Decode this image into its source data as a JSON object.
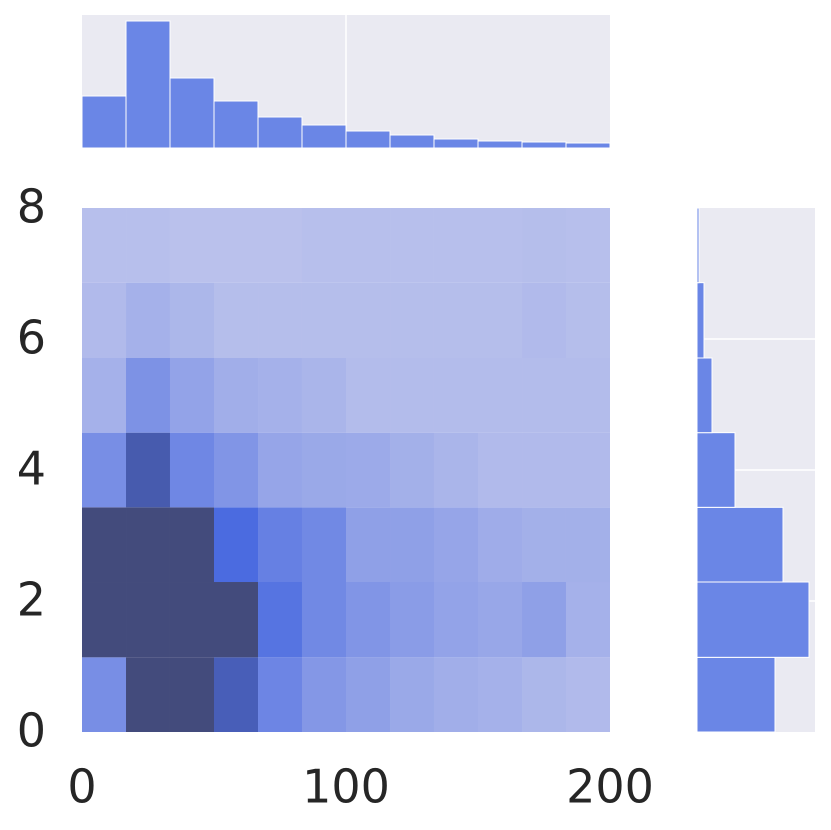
{
  "chart_data": [
    {
      "type": "heatmap2d",
      "x_bins": [
        0,
        16.67,
        33.33,
        50,
        66.67,
        83.33,
        100,
        116.67,
        133.33,
        150,
        166.67,
        183.33,
        200
      ],
      "y_bins": [
        0,
        1.14,
        2.29,
        3.43,
        4.57,
        5.71,
        6.86,
        8
      ],
      "values": [
        [
          3,
          10,
          10,
          7,
          3.5,
          2.5,
          2,
          1.5,
          1.2,
          1,
          0.7,
          0.5
        ],
        [
          10,
          10,
          10,
          10,
          4.5,
          3.3,
          2.6,
          2.2,
          1.8,
          1.6,
          2,
          1
        ],
        [
          10,
          10,
          10,
          5,
          3.8,
          3.3,
          2,
          2,
          1.7,
          1.3,
          1.1,
          1.1
        ],
        [
          3,
          7.5,
          3.4,
          2.6,
          1.7,
          1.5,
          1.4,
          1.1,
          0.8,
          0.5,
          0.5,
          0.5
        ],
        [
          1,
          2.8,
          1.8,
          1.2,
          1,
          0.8,
          0.4,
          0.4,
          0.4,
          0.4,
          0.4,
          0.4
        ],
        [
          0.5,
          1,
          0.7,
          0.3,
          0.3,
          0.3,
          0.3,
          0.3,
          0.3,
          0.3,
          0.5,
          0.3
        ],
        [
          0.2,
          0.2,
          0.1,
          0.1,
          0.1,
          0.2,
          0.2,
          0.2,
          0.2,
          0.2,
          0.3,
          0.2
        ]
      ],
      "colormap": [
        "#bcc3ec",
        "#4b6be0",
        "#434b7c"
      ],
      "xlim": [
        0,
        200
      ],
      "ylim": [
        0,
        8
      ],
      "xticks": [
        0,
        100,
        200
      ],
      "yticks": [
        0,
        2,
        4,
        6,
        8
      ]
    },
    {
      "type": "histogram",
      "orientation": "vertical",
      "color": "#6a86e6",
      "bins": [
        0,
        16.67,
        33.33,
        50,
        66.67,
        83.33,
        100,
        116.67,
        133.33,
        150,
        166.67,
        183.33,
        200
      ],
      "values": [
        52,
        127,
        70,
        47,
        31,
        23,
        17,
        13,
        9,
        7,
        6,
        5
      ],
      "xlim": [
        0,
        200
      ],
      "ylim": [
        0,
        133
      ],
      "grid_lines": [
        100
      ]
    },
    {
      "type": "histogram",
      "orientation": "horizontal",
      "color": "#6a86e6",
      "bins": [
        0,
        1.14,
        2.29,
        3.43,
        4.57,
        5.71,
        6.86,
        8
      ],
      "values": [
        78,
        112,
        86,
        38,
        15,
        7,
        2
      ],
      "xlim": [
        0,
        118
      ],
      "ylim": [
        0,
        8
      ],
      "grid_lines": [
        2,
        4,
        6
      ]
    }
  ]
}
